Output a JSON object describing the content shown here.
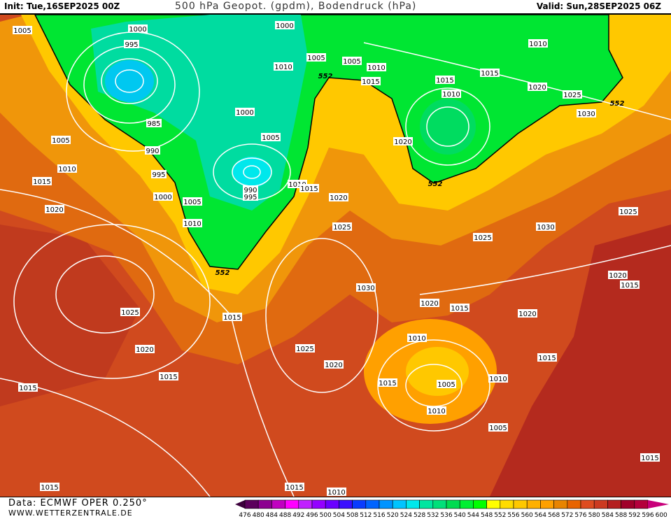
{
  "header": {
    "init": "Init: Tue,16SEP2025 00Z",
    "title": "500 hPa Geopot. (gpdm), Bodendruck (hPa)",
    "valid": "Valid: Sun,28SEP2025 06Z"
  },
  "footer": {
    "data_source": "Data: ECMWF OPER 0.250°",
    "website": "WWW.WETTERZENTRALE.DE"
  },
  "legend": {
    "labels": [
      "476",
      "480",
      "484",
      "488",
      "492",
      "496",
      "500",
      "504",
      "508",
      "512",
      "516",
      "520",
      "524",
      "528",
      "532",
      "536",
      "540",
      "544",
      "548",
      "552",
      "556",
      "560",
      "564",
      "568",
      "572",
      "576",
      "580",
      "584",
      "588",
      "592",
      "596",
      "600"
    ],
    "colors": [
      "#5c005c",
      "#8c0090",
      "#c000c0",
      "#ff00ff",
      "#c020ff",
      "#9400ff",
      "#6a00ff",
      "#3a10ff",
      "#0a3cff",
      "#0064ff",
      "#0094ff",
      "#00c4ff",
      "#00e8ec",
      "#00e6a0",
      "#00e07a",
      "#00dc50",
      "#00f032",
      "#00ff00",
      "#ffff00",
      "#ffdc00",
      "#ffc800",
      "#ffb000",
      "#ffa000",
      "#e88400",
      "#e86400",
      "#de4c20",
      "#cc3a20",
      "#b41e1e",
      "#a0002a",
      "#b4003c"
    ],
    "below_color": "#3c003c",
    "above_color": "#c8007a"
  },
  "map": {
    "isobar_labels": [
      "1005",
      "1000",
      "995",
      "1000",
      "1005",
      "1005",
      "1010",
      "1015",
      "1010",
      "552",
      "1015",
      "1015",
      "1010",
      "1020",
      "1025",
      "1030",
      "552",
      "1010",
      "985",
      "1000",
      "1005",
      "990",
      "1005",
      "1020",
      "1010",
      "995",
      "1015",
      "990",
      "995",
      "1010",
      "1015",
      "552",
      "1000",
      "1005",
      "1020",
      "1020",
      "1010",
      "1025",
      "1030",
      "1025",
      "1025",
      "552",
      "1030",
      "1020",
      "1015",
      "1025",
      "1015",
      "1020",
      "1015",
      "1020",
      "1010",
      "1025",
      "1020",
      "1015",
      "1020",
      "1015",
      "1010",
      "1015",
      "1005",
      "1015",
      "1010",
      "1005",
      "1015",
      "1015",
      "1015",
      "1010"
    ]
  }
}
